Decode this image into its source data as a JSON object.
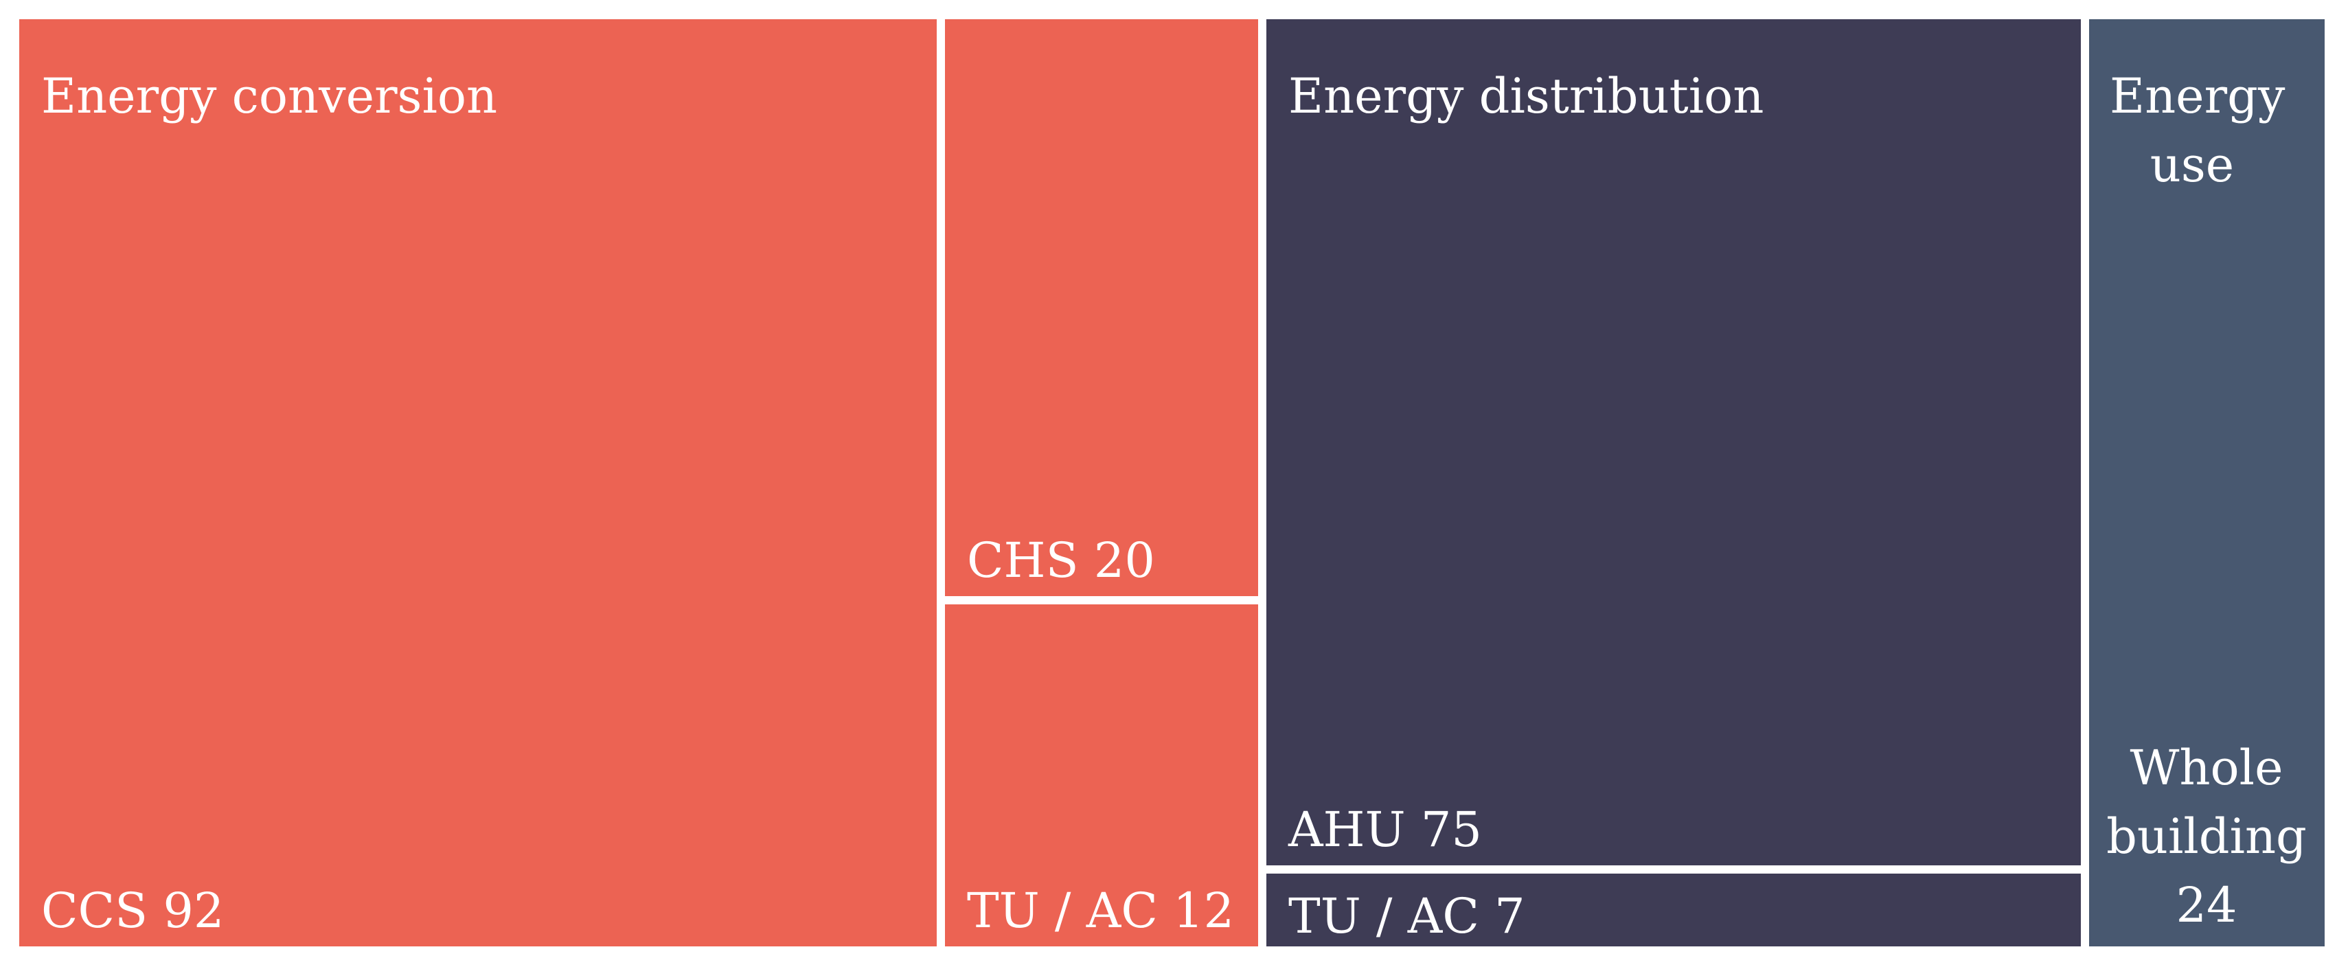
{
  "chart_data": {
    "type": "treemap",
    "groups": [
      {
        "name": "Energy conversion",
        "color": "#EC6353",
        "children": [
          {
            "label": "CCS",
            "value": 92
          },
          {
            "label": "CHS",
            "value": 20
          },
          {
            "label": "TU / AC",
            "value": 12
          }
        ]
      },
      {
        "name": "Energy distribution",
        "color": "#3E3C55",
        "children": [
          {
            "label": "AHU",
            "value": 75
          },
          {
            "label": "TU / AC",
            "value": 7
          }
        ]
      },
      {
        "name": "Energy use",
        "color": "#485870",
        "children": [
          {
            "label": "Whole building",
            "value": 24
          }
        ]
      }
    ]
  }
}
